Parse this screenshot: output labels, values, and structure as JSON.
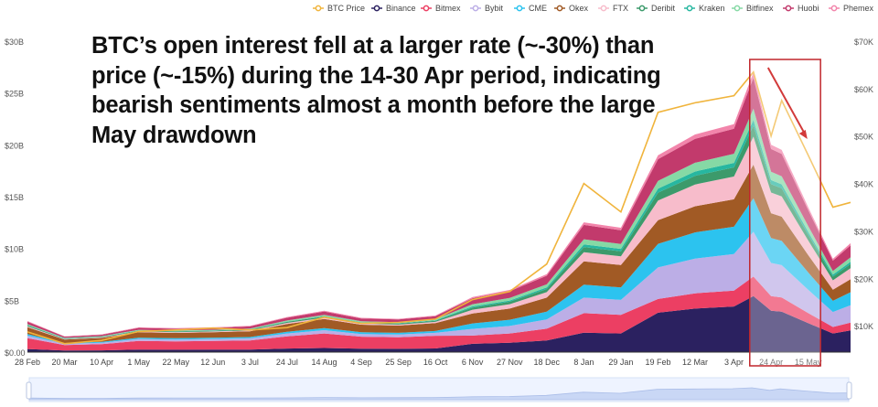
{
  "chart_data": {
    "type": "area",
    "stacked": true,
    "annotation": "BTC’s open interest fell at a larger rate (~-30%) than price (~-15%) during the 14-30 Apr period, indicating bearish sentiments almost a month before the large May drawdown",
    "x": [
      "2020-02-28",
      "2020-03-20",
      "2020-04-10",
      "2020-05-01",
      "2020-05-22",
      "2020-06-12",
      "2020-07-03",
      "2020-07-24",
      "2020-08-14",
      "2020-09-04",
      "2020-09-25",
      "2020-10-16",
      "2020-11-06",
      "2020-11-27",
      "2020-12-18",
      "2021-01-08",
      "2021-01-29",
      "2021-02-19",
      "2021-03-12",
      "2021-04-03",
      "2021-04-14",
      "2021-04-24",
      "2021-04-30",
      "2021-05-15",
      "2021-05-29",
      "2021-06-08"
    ],
    "x_ticks": [
      {
        "date": "2020-02-28",
        "label": "28 Feb"
      },
      {
        "date": "2020-03-20",
        "label": "20 Mar"
      },
      {
        "date": "2020-04-10",
        "label": "10 Apr"
      },
      {
        "date": "2020-05-01",
        "label": "1 May"
      },
      {
        "date": "2020-05-22",
        "label": "22 May"
      },
      {
        "date": "2020-06-12",
        "label": "12 Jun"
      },
      {
        "date": "2020-07-03",
        "label": "3 Jul"
      },
      {
        "date": "2020-07-24",
        "label": "24 Jul"
      },
      {
        "date": "2020-08-14",
        "label": "14 Aug"
      },
      {
        "date": "2020-09-04",
        "label": "4 Sep"
      },
      {
        "date": "2020-09-25",
        "label": "25 Sep"
      },
      {
        "date": "2020-10-16",
        "label": "16 Oct"
      },
      {
        "date": "2020-11-06",
        "label": "6 Nov"
      },
      {
        "date": "2020-11-27",
        "label": "27 Nov"
      },
      {
        "date": "2020-12-18",
        "label": "18 Dec"
      },
      {
        "date": "2021-01-08",
        "label": "8 Jan"
      },
      {
        "date": "2021-01-29",
        "label": "29 Jan"
      },
      {
        "date": "2021-02-19",
        "label": "19 Feb"
      },
      {
        "date": "2021-03-12",
        "label": "12 Mar"
      },
      {
        "date": "2021-04-03",
        "label": "3 Apr"
      },
      {
        "date": "2021-04-24",
        "label": "24 Apr"
      },
      {
        "date": "2021-05-15",
        "label": "15 May"
      }
    ],
    "y_left": {
      "unit": "USD billions",
      "ylim": [
        0,
        30
      ],
      "ticks": [
        {
          "v": 0,
          "label": "$0.00"
        },
        {
          "v": 5,
          "label": "$5B"
        },
        {
          "v": 10,
          "label": "$10B"
        },
        {
          "v": 15,
          "label": "$15B"
        },
        {
          "v": 20,
          "label": "$20B"
        },
        {
          "v": 25,
          "label": "$25B"
        },
        {
          "v": 30,
          "label": "$30B"
        }
      ]
    },
    "y_right": {
      "unit": "USD thousands",
      "ylim": [
        0,
        70
      ],
      "ticks": [
        {
          "v": 10,
          "label": "$10K"
        },
        {
          "v": 20,
          "label": "$20K"
        },
        {
          "v": 30,
          "label": "$30K"
        },
        {
          "v": 40,
          "label": "$40K"
        },
        {
          "v": 50,
          "label": "$50K"
        },
        {
          "v": 60,
          "label": "$60K"
        },
        {
          "v": 70,
          "label": "$70K"
        }
      ]
    },
    "legend_position": "top-right",
    "highlight": {
      "from": "2021-04-14",
      "to": "2021-05-22"
    },
    "price_series": {
      "name": "BTC Price",
      "color": "#f0b43c",
      "values": [
        8.7,
        6.2,
        6.9,
        8.8,
        9.1,
        9.5,
        9.1,
        9.6,
        11.8,
        10.5,
        10.7,
        11.4,
        15.5,
        17.2,
        23.0,
        40.0,
        34.0,
        55.0,
        57.0,
        58.5,
        63.5,
        50.0,
        57.5,
        46.0,
        35.0,
        36.0
      ]
    },
    "series": [
      {
        "name": "Binance",
        "color": "#2b2160",
        "values": [
          0.3,
          0.15,
          0.17,
          0.24,
          0.23,
          0.24,
          0.25,
          0.34,
          0.4,
          0.33,
          0.32,
          0.35,
          0.8,
          0.9,
          1.13,
          1.88,
          1.8,
          3.8,
          4.2,
          4.4,
          5.4,
          4.0,
          3.9,
          2.8,
          1.8,
          2.1
        ]
      },
      {
        "name": "Bitmex",
        "color": "#ec3f63",
        "values": [
          1.05,
          0.53,
          0.6,
          0.84,
          0.81,
          0.84,
          0.88,
          1.19,
          1.4,
          1.16,
          1.12,
          1.23,
          0.8,
          0.9,
          1.13,
          1.88,
          1.8,
          1.33,
          1.47,
          1.54,
          1.89,
          1.4,
          1.37,
          0.98,
          0.63,
          0.74
        ]
      },
      {
        "name": "Bybit",
        "color": "#bcaee6",
        "values": [
          0.24,
          0.12,
          0.14,
          0.19,
          0.18,
          0.19,
          0.2,
          0.27,
          0.32,
          0.26,
          0.26,
          0.28,
          0.64,
          0.72,
          0.9,
          1.5,
          1.44,
          3.04,
          3.36,
          3.52,
          4.32,
          3.2,
          3.12,
          2.24,
          1.44,
          1.68
        ]
      },
      {
        "name": "CME",
        "color": "#2cc3ef",
        "values": [
          0.15,
          0.08,
          0.09,
          0.12,
          0.12,
          0.12,
          0.13,
          0.17,
          0.2,
          0.17,
          0.16,
          0.18,
          0.53,
          0.6,
          0.75,
          1.25,
          1.2,
          2.28,
          2.52,
          2.64,
          3.24,
          2.4,
          2.34,
          1.68,
          1.08,
          1.26
        ]
      },
      {
        "name": "Okex",
        "color": "#a15a25",
        "values": [
          0.66,
          0.33,
          0.37,
          0.53,
          0.51,
          0.53,
          0.55,
          0.75,
          0.88,
          0.73,
          0.7,
          0.77,
          0.95,
          1.08,
          1.35,
          2.25,
          2.16,
          2.28,
          2.52,
          2.64,
          3.24,
          2.4,
          2.34,
          1.68,
          1.08,
          1.26
        ]
      },
      {
        "name": "FTX",
        "color": "#f7bccb",
        "values": [
          0.09,
          0.05,
          0.05,
          0.07,
          0.07,
          0.07,
          0.08,
          0.1,
          0.12,
          0.1,
          0.1,
          0.11,
          0.37,
          0.42,
          0.53,
          0.88,
          0.84,
          1.9,
          2.1,
          2.2,
          2.7,
          2.0,
          1.95,
          1.4,
          0.9,
          1.05
        ]
      },
      {
        "name": "Deribit",
        "color": "#3c9a6b",
        "values": [
          0.09,
          0.05,
          0.05,
          0.07,
          0.07,
          0.07,
          0.08,
          0.1,
          0.12,
          0.1,
          0.1,
          0.11,
          0.21,
          0.24,
          0.3,
          0.5,
          0.48,
          0.76,
          0.84,
          0.88,
          1.08,
          0.8,
          0.78,
          0.56,
          0.36,
          0.42
        ]
      },
      {
        "name": "Kraken",
        "color": "#27b7a0",
        "values": [
          0.03,
          0.02,
          0.02,
          0.02,
          0.02,
          0.02,
          0.03,
          0.03,
          0.04,
          0.03,
          0.03,
          0.04,
          0.11,
          0.12,
          0.15,
          0.25,
          0.24,
          0.38,
          0.42,
          0.44,
          0.54,
          0.4,
          0.39,
          0.28,
          0.18,
          0.21
        ]
      },
      {
        "name": "Bitfinex",
        "color": "#86d9a5",
        "values": [
          0.09,
          0.05,
          0.05,
          0.07,
          0.07,
          0.07,
          0.08,
          0.1,
          0.12,
          0.1,
          0.1,
          0.11,
          0.21,
          0.24,
          0.3,
          0.5,
          0.48,
          0.76,
          0.84,
          0.88,
          1.08,
          0.8,
          0.78,
          0.56,
          0.36,
          0.42
        ]
      },
      {
        "name": "Huobi",
        "color": "#c23a6c",
        "values": [
          0.24,
          0.12,
          0.14,
          0.19,
          0.18,
          0.19,
          0.2,
          0.27,
          0.32,
          0.26,
          0.26,
          0.28,
          0.58,
          0.66,
          0.83,
          1.38,
          1.32,
          2.09,
          2.31,
          2.42,
          2.97,
          2.2,
          2.15,
          1.54,
          0.99,
          1.16
        ]
      },
      {
        "name": "Phemex",
        "color": "#f285ab",
        "values": [
          0.06,
          0.03,
          0.03,
          0.05,
          0.05,
          0.05,
          0.05,
          0.07,
          0.08,
          0.07,
          0.06,
          0.07,
          0.11,
          0.12,
          0.15,
          0.25,
          0.24,
          0.38,
          0.42,
          0.44,
          0.54,
          0.4,
          0.39,
          0.28,
          0.18,
          0.21
        ]
      }
    ]
  }
}
